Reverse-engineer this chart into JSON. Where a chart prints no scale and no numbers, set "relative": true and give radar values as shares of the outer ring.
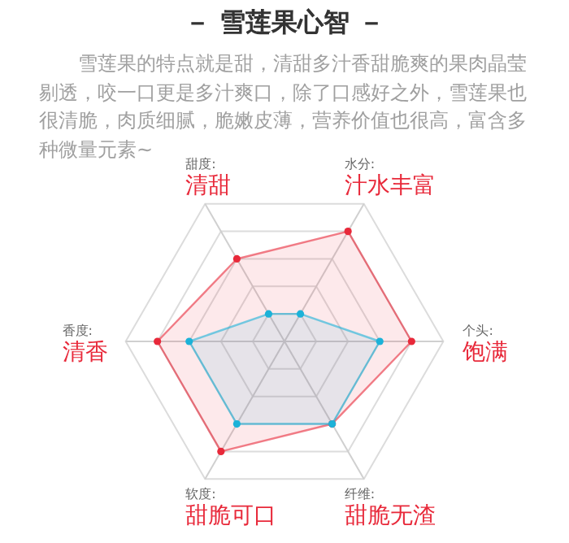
{
  "chart_data": {
    "type": "radar",
    "title": "－ 雪莲果心智 －",
    "subtitle": "雪莲果的特点就是甜，清甜多汁香甜脆爽的果肉晶莹剔透，咬一口更是多汁爽口，除了口感好之外，雪莲果也很清脆，肉质细腻，脆嫩皮薄，营养价值也很高，富含多种微量元素~",
    "categories": [
      "水分:\n汁水丰富",
      "个头:\n饱满",
      "纤维:\n甜脆无渣",
      "软度:\n甜脆可口",
      "香度:\n清香",
      "甜度:\n清甜"
    ],
    "relative": true,
    "marker": "circle",
    "grid": true,
    "series": [
      {
        "color": "#e8293a",
        "values": [
          0.8,
          0.8,
          0.6,
          0.8,
          0.8,
          0.6
        ]
      },
      {
        "color": "#1cb2d8",
        "values": [
          0.2,
          0.6,
          0.6,
          0.6,
          0.6,
          0.2
        ]
      }
    ]
  }
}
